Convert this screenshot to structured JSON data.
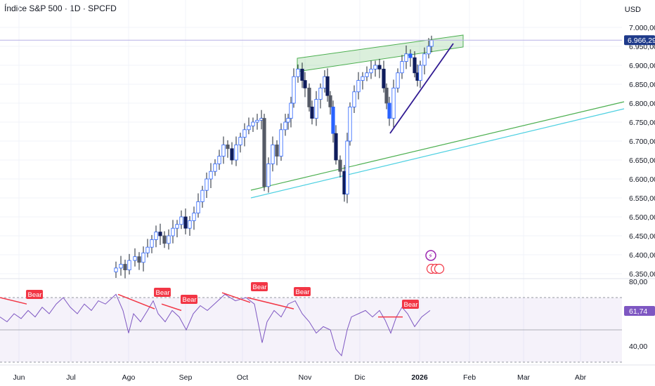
{
  "header": {
    "title": "Índice S&P 500 · 1D · SPCFD",
    "currency": "USD"
  },
  "colors": {
    "up": "#ffffff",
    "down": "#0f1d5c",
    "downAlt": "#2962ff",
    "wick": "#1d2430",
    "blue": "#2962ff",
    "rsi": "#7e57c2",
    "bear": "#f23645",
    "channel": "#4caf50",
    "trend": "#311b92",
    "cyan": "#4dd0e1",
    "price_line": "#b7b0e5"
  },
  "chart_data": {
    "type": "candlestick",
    "price_axis": {
      "ticks": [
        "7.000,00",
        "6.950,00",
        "6.900,00",
        "6.850,00",
        "6.800,00",
        "6.750,00",
        "6.700,00",
        "6.650,00",
        "6.600,00",
        "6.550,00",
        "6.500,00",
        "6.450,00",
        "6.400,00",
        "6.350,00"
      ],
      "range": [
        6330,
        7020
      ]
    },
    "last_price": "6.966,29",
    "time_axis": [
      "Jun",
      "Jul",
      "Ago",
      "Sep",
      "Oct",
      "Nov",
      "Dic",
      "2026",
      "Feb",
      "Mar",
      "Abr"
    ],
    "rsi": {
      "value": "61,74",
      "levels": [
        {
          "label": "80,00",
          "value": 80
        },
        {
          "label": "40,00",
          "value": 40
        }
      ],
      "upper_band": 70,
      "lower_band": 30,
      "divergence_label": "Bear",
      "divergences": 6
    }
  }
}
